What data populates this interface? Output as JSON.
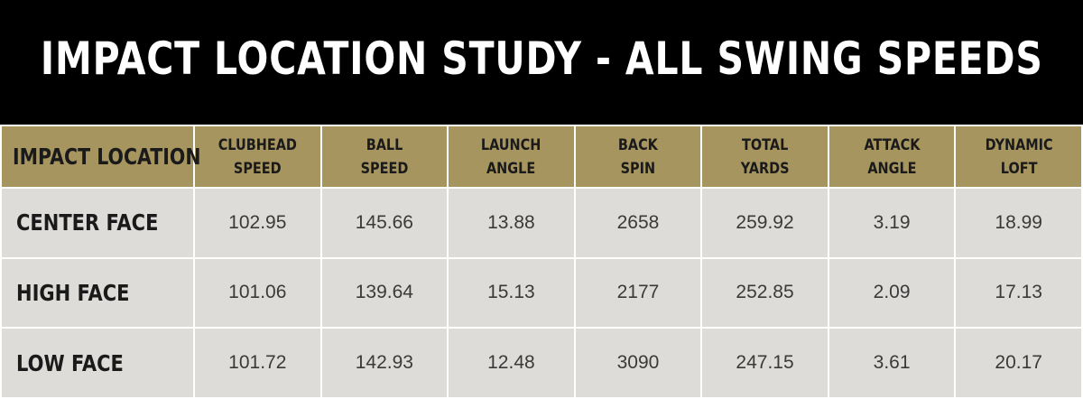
{
  "title": "IMPACT LOCATION STUDY - ALL SWING SPEEDS",
  "colors": {
    "background": "#000000",
    "header_gold": "#a7955f",
    "cell_gray": "#dedcd8",
    "title_text": "#ffffff"
  },
  "chart_data": {
    "type": "table",
    "title": "IMPACT LOCATION STUDY - ALL SWING SPEEDS",
    "row_header_label": "IMPACT LOCATION",
    "columns": [
      {
        "line1": "CLUBHEAD",
        "line2": "SPEED"
      },
      {
        "line1": "BALL",
        "line2": "SPEED"
      },
      {
        "line1": "LAUNCH",
        "line2": "ANGLE"
      },
      {
        "line1": "BACK",
        "line2": "SPIN"
      },
      {
        "line1": "TOTAL",
        "line2": "YARDS"
      },
      {
        "line1": "ATTACK",
        "line2": "ANGLE"
      },
      {
        "line1": "DYNAMIC",
        "line2": "LOFT"
      }
    ],
    "rows": [
      {
        "label": "CENTER FACE",
        "values": [
          "102.95",
          "145.66",
          "13.88",
          "2658",
          "259.92",
          "3.19",
          "18.99"
        ]
      },
      {
        "label": "HIGH FACE",
        "values": [
          "101.06",
          "139.64",
          "15.13",
          "2177",
          "252.85",
          "2.09",
          "17.13"
        ]
      },
      {
        "label": "LOW FACE",
        "values": [
          "101.72",
          "142.93",
          "12.48",
          "3090",
          "247.15",
          "3.61",
          "20.17"
        ]
      }
    ]
  }
}
